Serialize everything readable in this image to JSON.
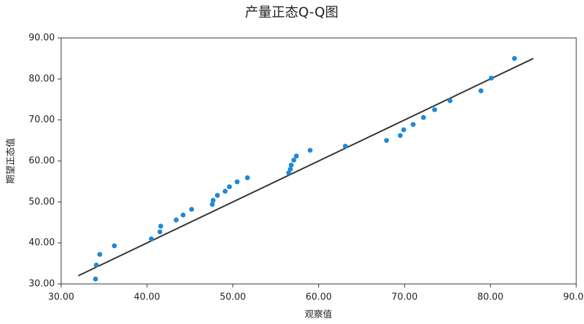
{
  "chart_data": {
    "type": "scatter",
    "title": "产量正态Q-Q图",
    "x_label": "观察值",
    "y_label": "期望正态值",
    "series": [
      {
        "color": "#1f88d8",
        "x": [
          34.0,
          34.1,
          34.5,
          36.2,
          40.5,
          41.5,
          41.6,
          43.4,
          44.2,
          45.2,
          47.6,
          47.7,
          48.2,
          49.1,
          49.6,
          50.5,
          51.7,
          56.5,
          56.7,
          56.8,
          57.1,
          57.4,
          59.0,
          63.1,
          67.9,
          69.5,
          69.9,
          71.0,
          72.2,
          73.5,
          75.3,
          78.9,
          80.1,
          82.8
        ],
        "values": [
          31.2,
          34.6,
          37.2,
          39.3,
          41.0,
          42.7,
          44.1,
          45.6,
          46.8,
          48.2,
          49.4,
          50.4,
          51.6,
          52.6,
          53.7,
          54.9,
          55.9,
          57.1,
          58.0,
          59.0,
          60.2,
          61.2,
          62.6,
          63.6,
          65.0,
          66.2,
          67.6,
          68.9,
          70.6,
          72.5,
          74.7,
          77.1,
          80.2,
          85.0
        ]
      }
    ],
    "reference_line": {
      "color": "#333333",
      "x": [
        32.0,
        85.0
      ],
      "values": [
        32.0,
        85.0
      ]
    },
    "xlim": [
      30,
      90
    ],
    "ylim": [
      30,
      90
    ],
    "xticks": [
      {
        "value": 30,
        "label": "30.00"
      },
      {
        "value": 40,
        "label": "40.00"
      },
      {
        "value": 50,
        "label": "50.00"
      },
      {
        "value": 60,
        "label": "60.00"
      },
      {
        "value": 70,
        "label": "70.00"
      },
      {
        "value": 80,
        "label": "80.00"
      },
      {
        "value": 90,
        "label": "90.00"
      }
    ],
    "yticks": [
      {
        "value": 30,
        "label": "30.00"
      },
      {
        "value": 40,
        "label": "40.00"
      },
      {
        "value": 50,
        "label": "50.00"
      },
      {
        "value": 60,
        "label": "60.00"
      },
      {
        "value": 70,
        "label": "70.00"
      },
      {
        "value": 80,
        "label": "80.00"
      },
      {
        "value": 90,
        "label": "90.00"
      }
    ]
  }
}
